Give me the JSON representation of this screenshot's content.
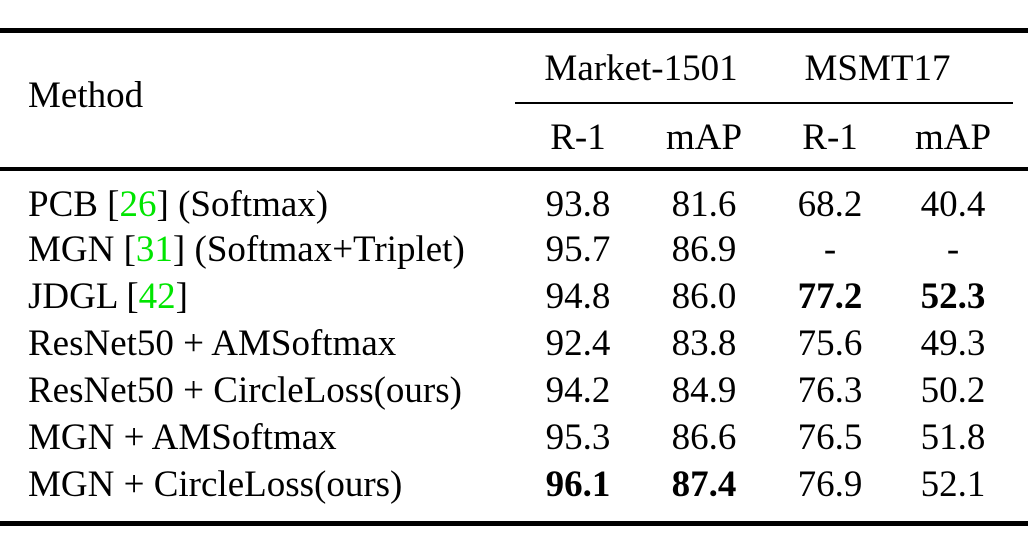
{
  "accent_colors": {
    "citation_green": "#00E500",
    "text_black": "#000000",
    "background": "#ffffff"
  },
  "table": {
    "method_header": "Method",
    "groups": [
      {
        "label": "Market-1501"
      },
      {
        "label": "MSMT17"
      }
    ],
    "sub_headers": [
      "R-1",
      "mAP",
      "R-1",
      "mAP"
    ],
    "rows": [
      {
        "method": {
          "pre": "PCB [",
          "cite": "26",
          "post": "] (Softmax)"
        },
        "values": [
          "93.8",
          "81.6",
          "68.2",
          "40.4"
        ]
      },
      {
        "method": {
          "pre": "MGN [",
          "cite": "31",
          "post": "] (Softmax+Triplet)"
        },
        "values": [
          "95.7",
          "86.9",
          "-",
          "-"
        ]
      },
      {
        "method": {
          "pre": "JDGL [",
          "cite": "42",
          "post": "]"
        },
        "values": [
          "94.8",
          "86.0",
          "77.2",
          "52.3"
        ]
      },
      {
        "method": {
          "pre": "ResNet50 + AMSoftmax",
          "cite": "",
          "post": ""
        },
        "values": [
          "92.4",
          "83.8",
          "75.6",
          "49.3"
        ]
      },
      {
        "method": {
          "pre": "ResNet50 + CircleLoss(ours)",
          "cite": "",
          "post": ""
        },
        "values": [
          "94.2",
          "84.9",
          "76.3",
          "50.2"
        ]
      },
      {
        "method": {
          "pre": "MGN + AMSoftmax",
          "cite": "",
          "post": ""
        },
        "values": [
          "95.3",
          "86.6",
          "76.5",
          "51.8"
        ]
      },
      {
        "method": {
          "pre": "MGN + CircleLoss(ours)",
          "cite": "",
          "post": ""
        },
        "values": [
          "96.1",
          "87.4",
          "76.9",
          "52.1"
        ]
      }
    ]
  }
}
